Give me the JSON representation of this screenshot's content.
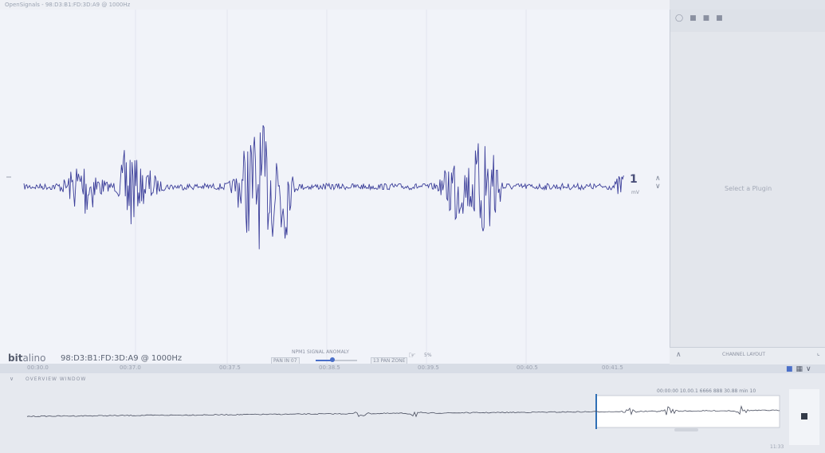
{
  "window": {
    "title": "OpenSignals - 98:D3:B1:FD:3D:A9 @ 1000Hz"
  },
  "signal_view": {
    "scale_value": "1",
    "scale_unit": "mV",
    "scale_arrows_icon": "chevron-updown-icon"
  },
  "toolbar": {
    "logo_bold": "bit",
    "logo_rest": "alino",
    "device_label": "98:D3:B1:FD:3D:A9 @ 1000Hz",
    "playback": {
      "top_label": "NPM1  SIGNAL  ANOMALY",
      "left_value": "PAN  IN  07",
      "right_value": "13  PAN ZONE",
      "slider_fraction": 0.38
    },
    "hand_label": "5%"
  },
  "time_axis": {
    "ticks": [
      "00:30.0",
      "00:37.0",
      "00:37.5",
      "00:38.5",
      "00:39.5",
      "00:40.5",
      "00:41.5"
    ]
  },
  "right_panel": {
    "hint": "Select a Plugin",
    "footer_label": "CHANNEL LAYOUT"
  },
  "overview": {
    "title": "OVERVIEW WINDOW",
    "selection_label": "00:00:00  10.00.1 6666 888 30.88 min 10",
    "timecode": "11:33"
  },
  "colors": {
    "signal": "#3c3f9a",
    "accent": "#4a6fc8",
    "background": "#f1f3f9"
  }
}
